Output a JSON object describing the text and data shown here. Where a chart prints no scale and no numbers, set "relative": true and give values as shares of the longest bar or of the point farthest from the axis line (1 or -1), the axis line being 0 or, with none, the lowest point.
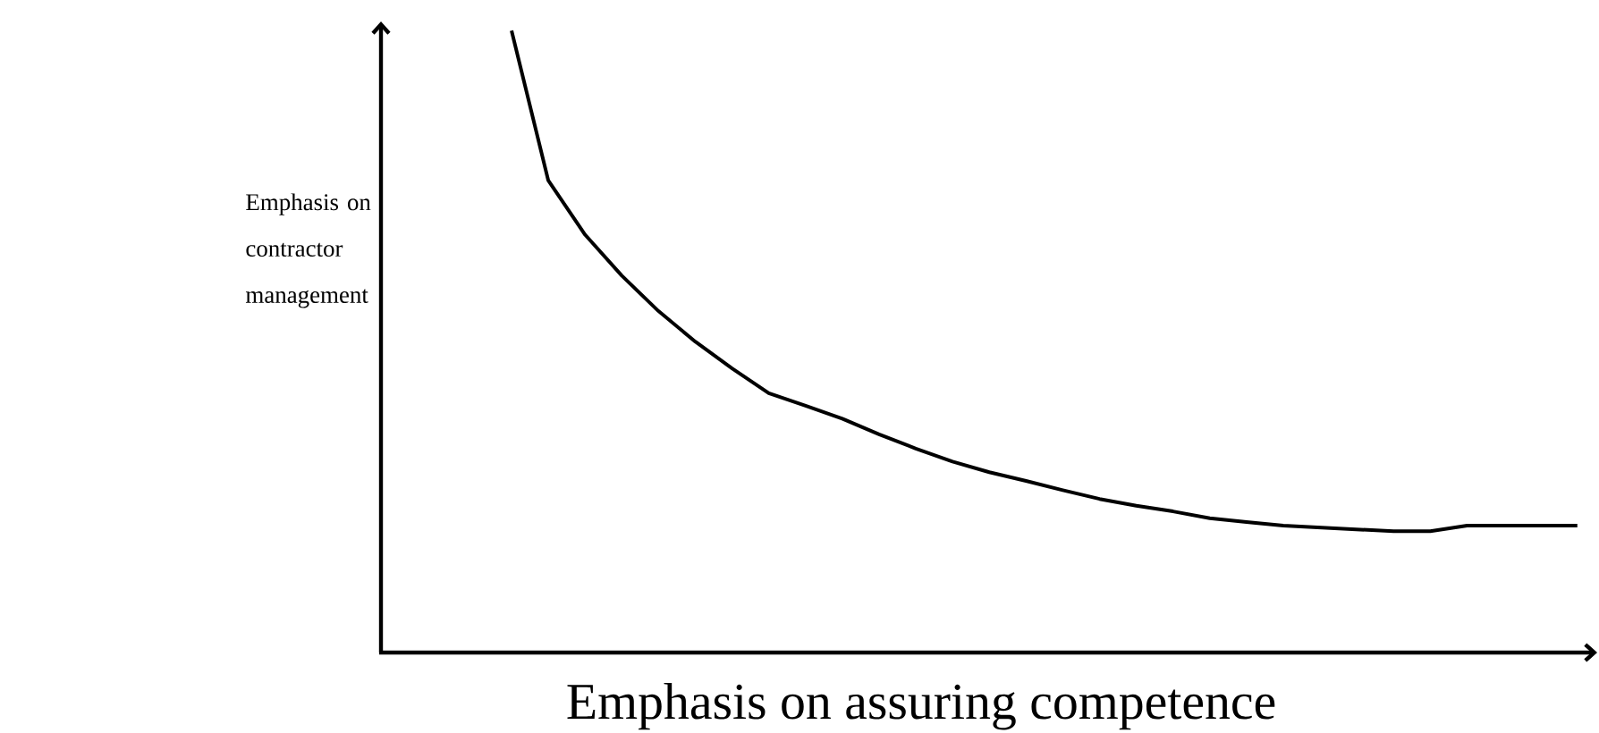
{
  "chart_data": {
    "type": "line",
    "relative": true,
    "xlabel": "Emphasis on assuring competence",
    "ylabel": "Emphasis on contractor management",
    "categories": [
      null,
      null,
      null,
      null,
      null,
      null,
      null,
      null,
      null,
      null,
      null,
      null,
      null,
      null,
      null,
      null,
      null,
      null,
      null,
      null,
      null,
      null,
      null,
      null,
      null,
      null,
      null,
      null,
      null,
      null
    ],
    "series": [
      {
        "color": "#000000",
        "values": [
          1.0,
          0.759,
          0.672,
          0.606,
          0.549,
          0.5,
          0.457,
          0.417,
          0.397,
          0.376,
          0.351,
          0.328,
          0.307,
          0.29,
          0.276,
          0.261,
          0.247,
          0.236,
          0.227,
          0.216,
          0.21,
          0.204,
          0.201,
          0.198,
          0.195,
          0.195,
          0.204,
          0.204,
          0.204,
          0.204
        ]
      }
    ],
    "marker": "none",
    "line_style": "solid"
  }
}
